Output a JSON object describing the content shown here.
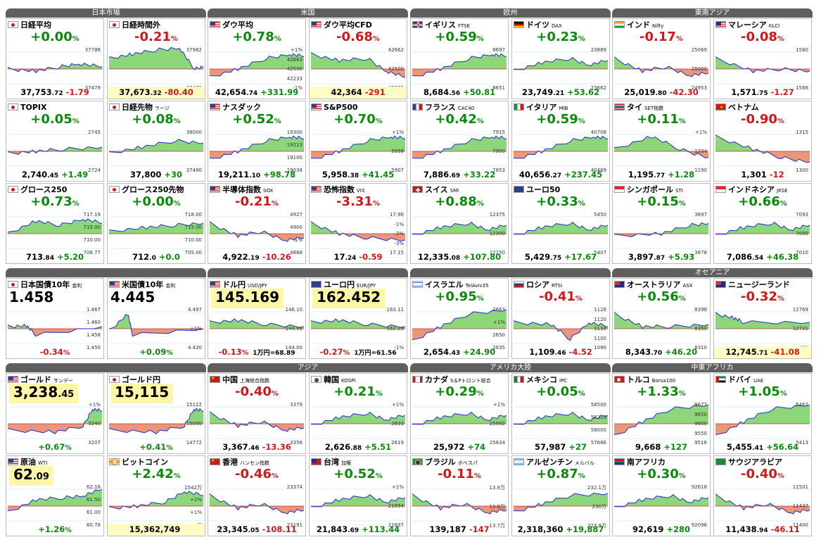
{
  "groups": [
    {
      "title": "日本市場",
      "pos": "g0",
      "cells": [
        {
          "name": "日経平均",
          "sub": "",
          "flag": "jp",
          "pct": "+0.00",
          "dir": "eq",
          "main": "37,753",
          "dec": ".72",
          "chg": "-1.79",
          "chgdir": "dn",
          "labels": [
            "37786",
            "37479"
          ],
          "wm": "Nikkei",
          "shape": "a"
        },
        {
          "name": "日経時間外",
          "sub": "",
          "flag": "jp",
          "pct": "-0.21",
          "dir": "dn",
          "main": "37,673",
          "dec": ".32",
          "chg": "-80.40",
          "chgdir": "dn",
          "labels": [
            "37982",
            "37479"
          ],
          "wm": "DERIVED INFO",
          "shape": "b",
          "hl": true
        },
        {
          "name": "TOPIX",
          "sub": "",
          "flag": "jp",
          "pct": "+0.05",
          "dir": "up",
          "main": "2,740",
          "dec": ".45",
          "chg": "+1.49",
          "chgdir": "up",
          "labels": [
            "2745",
            "2724"
          ],
          "wm": "TOPIX",
          "shape": "c"
        },
        {
          "name": "日経先物",
          "sub": "ラージ",
          "flag": "jp",
          "pct": "+0.08",
          "dir": "up",
          "main": "37,800",
          "dec": "",
          "chg": "+30",
          "chgdir": "up",
          "labels": [
            "38000",
            "37490"
          ],
          "wm": "",
          "shape": "d"
        },
        {
          "name": "グロース250",
          "sub": "",
          "flag": "jp",
          "pct": "+0.73",
          "dir": "up",
          "main": "713",
          "dec": ".84",
          "chg": "+5.20",
          "chgdir": "up",
          "labels": [
            "717.19",
            "715.00",
            "710.00",
            "708.77"
          ],
          "wm": "",
          "shape": "e"
        },
        {
          "name": "グロース250先物",
          "sub": "",
          "flag": "jp",
          "pct": "+0.00",
          "dir": "eq",
          "main": "712",
          "dec": ".0",
          "chg": "+0.0",
          "chgdir": "up",
          "labels": [
            "718.00",
            "715.00",
            "710.00",
            "705.00"
          ],
          "wm": "",
          "shape": "f"
        }
      ]
    },
    {
      "title": "米国",
      "pos": "g1",
      "cells": [
        {
          "name": "ダウ平均",
          "sub": "",
          "flag": "us",
          "pct": "+0.78",
          "dir": "up",
          "main": "42,654",
          "dec": ".74",
          "chg": "+331.99",
          "chgdir": "up",
          "labels": [
            "+1%",
            "42663",
            "42500",
            "42233",
            "-1%"
          ],
          "wm": "",
          "shape": "g"
        },
        {
          "name": "ダウ平均CFD",
          "sub": "",
          "flag": "us",
          "pct": "-0.68",
          "dir": "dn",
          "main": "42,364",
          "dec": "",
          "chg": "-291",
          "chgdir": "dn",
          "labels": [
            "42662",
            "42500",
            "42229"
          ],
          "wm": "",
          "shape": "h",
          "hl": true
        },
        {
          "name": "ナスダック",
          "sub": "",
          "flag": "us",
          "pct": "+0.52",
          "dir": "up",
          "main": "19,211",
          "dec": ".10",
          "chg": "+98.78",
          "chgdir": "up",
          "labels": [
            "19300",
            "19213",
            "19100",
            "19038"
          ],
          "wm": "",
          "shape": "g"
        },
        {
          "name": "S&P500",
          "sub": "",
          "flag": "us",
          "pct": "+0.70",
          "dir": "up",
          "main": "5,958",
          "dec": ".38",
          "chg": "+41.45",
          "chgdir": "up",
          "labels": [
            "+1%",
            "5958",
            "5907"
          ],
          "wm": "",
          "shape": "g"
        },
        {
          "name": "半導体指数",
          "sub": "SOX",
          "flag": "us",
          "pct": "-0.21",
          "dir": "dn",
          "main": "4,922",
          "dec": ".19",
          "chg": "-10.26",
          "chgdir": "dn",
          "labels": [
            "4927",
            "4900",
            "-1%",
            "4868"
          ],
          "wm": "",
          "shape": "i"
        },
        {
          "name": "恐怖指数",
          "sub": "VIX",
          "flag": "us",
          "pct": "-3.31",
          "dir": "dn",
          "main": "17",
          "dec": ".24",
          "chg": "-0.59",
          "chgdir": "dn",
          "labels": [
            "17.96",
            "-1%",
            "-2%",
            "-3%",
            "17.15"
          ],
          "wm": "",
          "shape": "j"
        }
      ]
    },
    {
      "title": "欧州",
      "pos": "g2",
      "cells": [
        {
          "name": "イギリス",
          "sub": "FTSE",
          "flag": "gb",
          "pct": "+0.59",
          "dir": "up",
          "main": "8,684",
          "dec": ".56",
          "chg": "+50.81",
          "chgdir": "up",
          "labels": [
            "8697",
            "8651"
          ],
          "wm": "",
          "shape": "g"
        },
        {
          "name": "ドイツ",
          "sub": "DAX",
          "flag": "de",
          "pct": "+0.23",
          "dir": "up",
          "main": "23,749",
          "dec": ".21",
          "chg": "+53.62",
          "chgdir": "up",
          "labels": [
            "23889",
            "23662"
          ],
          "wm": "",
          "shape": "k"
        },
        {
          "name": "フランス",
          "sub": "CAC40",
          "flag": "fr",
          "pct": "+0.42",
          "dir": "up",
          "main": "7,886",
          "dec": ".69",
          "chg": "+33.22",
          "chgdir": "up",
          "labels": [
            "7915",
            "7900",
            "7853"
          ],
          "wm": "",
          "shape": "g"
        },
        {
          "name": "イタリア",
          "sub": "MIB",
          "flag": "it",
          "pct": "+0.59",
          "dir": "up",
          "main": "40,656",
          "dec": ".27",
          "chg": "+237.45",
          "chgdir": "up",
          "labels": [
            "40708",
            "40469"
          ],
          "wm": "",
          "shape": "g"
        },
        {
          "name": "スイス",
          "sub": "SMI",
          "flag": "ch",
          "pct": "+0.88",
          "dir": "up",
          "main": "12,335",
          "dec": ".08",
          "chg": "+107.80",
          "chgdir": "up",
          "labels": [
            "12375",
            "12300",
            "12250"
          ],
          "wm": "",
          "shape": "k"
        },
        {
          "name": "ユーロ50",
          "sub": "",
          "flag": "eu",
          "pct": "+0.33",
          "dir": "up",
          "main": "5,429",
          "dec": ".75",
          "chg": "+17.67",
          "chgdir": "up",
          "labels": [
            "5450",
            "5407"
          ],
          "wm": "",
          "shape": "k"
        }
      ]
    },
    {
      "title": "東南アジア",
      "pos": "g3",
      "cells": [
        {
          "name": "インド",
          "sub": "Nifty",
          "flag": "in",
          "pct": "-0.17",
          "dir": "dn",
          "main": "25,019",
          "dec": ".80",
          "chg": "-42.30",
          "chgdir": "dn",
          "labels": [
            "25069",
            "25000",
            "24953"
          ],
          "wm": "",
          "shape": "i"
        },
        {
          "name": "マレーシア",
          "sub": "KLCI",
          "flag": "my",
          "pct": "-0.08",
          "dir": "dn",
          "main": "1,571",
          "dec": ".75",
          "chg": "-1.27",
          "chgdir": "dn",
          "labels": [
            "1580",
            "1568"
          ],
          "wm": "",
          "shape": "l"
        },
        {
          "name": "タイ",
          "sub": "SET指数",
          "flag": "th",
          "pct": "+0.11",
          "dir": "up",
          "main": "1,195",
          "dec": ".77",
          "chg": "+1.28",
          "chgdir": "up",
          "labels": [
            "+1%",
            "1204",
            "1190"
          ],
          "wm": "",
          "shape": "m"
        },
        {
          "name": "ベトナム",
          "sub": "",
          "flag": "vn",
          "pct": "-0.90",
          "dir": "dn",
          "main": "1,301",
          "dec": "",
          "chg": "-12",
          "chgdir": "dn",
          "labels": [
            "1315",
            "1300"
          ],
          "wm": "",
          "shape": "n"
        },
        {
          "name": "シンガポール",
          "sub": "STI",
          "flag": "sg",
          "pct": "+0.15",
          "dir": "up",
          "main": "3,897",
          "dec": ".87",
          "chg": "+5.93",
          "chgdir": "up",
          "labels": [
            "3897",
            "3878"
          ],
          "wm": "",
          "shape": "o"
        },
        {
          "name": "インドネシア",
          "sub": "JKSE",
          "flag": "id",
          "pct": "+0.66",
          "dir": "up",
          "main": "7,086",
          "dec": ".54",
          "chg": "+46.38",
          "chgdir": "up",
          "labels": [
            "7093",
            "7050",
            "7010"
          ],
          "wm": "",
          "shape": "k"
        }
      ]
    },
    {
      "title": "",
      "pos": "g4",
      "cells": [
        {
          "name": "日本国債10年",
          "sub": "金利",
          "flag": "jp",
          "big": "1.458",
          "bigdec": "",
          "pct": "-0.34",
          "dir": "dn",
          "labels": [
            "1.467",
            "1.460",
            "1.458",
            "1.450"
          ],
          "shape": "p",
          "pctbottom": true
        },
        {
          "name": "米国債10年",
          "sub": "金利",
          "flag": "us",
          "big": "4.445",
          "bigdec": "",
          "pct": "+0.09",
          "dir": "up",
          "labels": [
            "4.497",
            "+1%",
            "4.430"
          ],
          "shape": "q",
          "pctbottom": true
        }
      ]
    },
    {
      "title": "",
      "pos": "g5",
      "cells": [
        {
          "name": "ドル円",
          "sub": "USD/JPY",
          "flag": "us",
          "big": "145.169",
          "bigdec": "",
          "yel": true,
          "pct": "-0.13",
          "dir": "dn",
          "extra": "1万円=68.89",
          "labels": [
            "146.10",
            "144.91",
            "144.00"
          ],
          "shape": "r",
          "pctbottom": true
        },
        {
          "name": "ユーロ円",
          "sub": "EUR/JPY",
          "flag": "eu",
          "big": "162.452",
          "bigdec": "",
          "yel": true,
          "pct": "-0.27",
          "dir": "dn",
          "extra": "1万円=61.56",
          "labels": [
            "163.11",
            "162.23",
            "-1%"
          ],
          "shape": "r",
          "pctbottom": true
        }
      ]
    },
    {
      "title": "",
      "pos": "g6",
      "cells": [
        {
          "name": "イスラエル",
          "sub": "TelAviv35",
          "flag": "il",
          "pct": "+0.95",
          "dir": "up",
          "main": "2,654",
          "dec": ".43",
          "chg": "+24.90",
          "chgdir": "up",
          "labels": [
            "2663",
            "+1%",
            "2650",
            "2635"
          ],
          "wm": "",
          "shape": "s"
        },
        {
          "name": "ロシア",
          "sub": "RTSI",
          "flag": "ru",
          "pct": "-0.41",
          "dir": "dn",
          "main": "1,109",
          "dec": ".46",
          "chg": "-4.52",
          "chgdir": "dn",
          "labels": [
            "1128",
            "1120",
            "1110",
            "1100",
            "1090"
          ],
          "wm": "",
          "shape": "t"
        }
      ]
    },
    {
      "title": "オセアニア",
      "pos": "g7",
      "cells": [
        {
          "name": "オーストラリア",
          "sub": "ASX",
          "flag": "au",
          "pct": "+0.56",
          "dir": "up",
          "main": "8,343",
          "dec": ".70",
          "chg": "+46.20",
          "chgdir": "up",
          "labels": [
            "8398",
            "8350",
            "8310"
          ],
          "wm": "",
          "shape": "u"
        },
        {
          "name": "ニュージーランド",
          "sub": "",
          "flag": "nz",
          "pct": "-0.32",
          "dir": "dn",
          "main": "12,745",
          "dec": ".71",
          "chg": "-41.08",
          "chgdir": "dn",
          "labels": [
            "12769",
            "12731",
            "-1%"
          ],
          "wm": "",
          "shape": "v",
          "hl": true
        }
      ]
    },
    {
      "title": "",
      "pos": "g8",
      "cells": [
        {
          "name": "ゴールド",
          "sub": "サンデー",
          "flag": "us",
          "big": "3,238",
          "bigdec": ".45",
          "yel": true,
          "pct": "+0.67",
          "dir": "up",
          "labels": [
            "+1%",
            "3240",
            "3207"
          ],
          "shape": "w",
          "pctbottom": true
        },
        {
          "name": "ゴールド円",
          "sub": "",
          "flag": "jp",
          "big": "15,115",
          "bigdec": "",
          "yel": true,
          "pct": "+0.41",
          "dir": "up",
          "labels": [
            "15122",
            "15000",
            "14772"
          ],
          "shape": "w",
          "pctbottom": true
        },
        {
          "name": "原油",
          "sub": "WTI",
          "flag": "us",
          "big": "62",
          "bigdec": ".09",
          "yel": true,
          "pct": "+1.26",
          "dir": "up",
          "labels": [
            "62.16",
            "61.50",
            "61.00",
            "60.78"
          ],
          "shape": "x",
          "pctbottom": true
        },
        {
          "name": "ビットコイン",
          "sub": "",
          "flag": "btc",
          "pct": "+2.42",
          "dir": "up",
          "main": "15,362,749",
          "dec": "",
          "chg": "",
          "chgdir": "up",
          "labels": [
            "1542万",
            "+2%",
            "+1%",
            "1499万"
          ],
          "wm": "",
          "shape": "y",
          "hl": true
        }
      ]
    },
    {
      "title": "アジア",
      "pos": "g9",
      "cells": [
        {
          "name": "中国",
          "sub": "上海総合指数",
          "flag": "cn",
          "pct": "-0.40",
          "dir": "dn",
          "main": "3,367",
          "dec": ".46",
          "chg": "-13.36",
          "chgdir": "dn",
          "labels": [
            "3379",
            "3356"
          ],
          "wm": "",
          "shape": "i"
        },
        {
          "name": "韓国",
          "sub": "KOSPI",
          "flag": "kr",
          "pct": "+0.21",
          "dir": "up",
          "main": "2,626",
          "dec": ".88",
          "chg": "+5.51",
          "chgdir": "up",
          "labels": [
            "+1%",
            "2633",
            "2619"
          ],
          "wm": "",
          "shape": "k"
        },
        {
          "name": "香港",
          "sub": "ハンセン指数",
          "flag": "cn",
          "pct": "-0.46",
          "dir": "dn",
          "main": "23,345",
          "dec": ".05",
          "chg": "-108.11",
          "chgdir": "dn",
          "labels": [
            "23374",
            "23191"
          ],
          "wm": "",
          "shape": "i"
        },
        {
          "name": "台湾",
          "sub": "加権",
          "flag": "tw",
          "pct": "+0.52",
          "dir": "up",
          "main": "21,843",
          "dec": ".69",
          "chg": "+113.44",
          "chgdir": "up",
          "labels": [
            "+1%",
            "21854",
            "21697"
          ],
          "wm": "",
          "shape": "k"
        }
      ]
    },
    {
      "title": "アメリカ大陸",
      "pos": "g10",
      "cells": [
        {
          "name": "カナダ",
          "sub": "S＆Pトロント総合",
          "flag": "ca",
          "pct": "+0.29",
          "dir": "up",
          "main": "25,972",
          "dec": "",
          "chg": "+74",
          "chgdir": "up",
          "labels": [
            "+1%",
            "25992",
            "25834"
          ],
          "wm": "",
          "shape": "k"
        },
        {
          "name": "メキシコ",
          "sub": "IPC",
          "flag": "mx",
          "pct": "+0.05",
          "dir": "up",
          "main": "57,987",
          "dec": "",
          "chg": "+27",
          "chgdir": "up",
          "labels": [
            "58500",
            "58223",
            "58000",
            "57686"
          ],
          "wm": "",
          "shape": "k"
        },
        {
          "name": "ブラジル",
          "sub": "ボベスパ",
          "flag": "br",
          "pct": "-0.11",
          "dir": "dn",
          "main": "139,187",
          "dec": "",
          "chg": "-147",
          "chgdir": "dn",
          "labels": [
            "13.9万",
            "13.8万",
            "13.7万"
          ],
          "wm": "",
          "shape": "i"
        },
        {
          "name": "アルゼンチン",
          "sub": "メルバル",
          "flag": "ar",
          "pct": "+0.87",
          "dir": "up",
          "main": "2,318,360",
          "dec": "",
          "chg": "+19,887",
          "chgdir": "up",
          "labels": [
            "232.1万",
            "230万",
            "227.9万"
          ],
          "wm": "",
          "shape": "z"
        }
      ]
    },
    {
      "title": "中東アフリカ",
      "pos": "g11",
      "cells": [
        {
          "name": "トルコ",
          "sub": "Borsa100",
          "flag": "tr",
          "pct": "+1.33",
          "dir": "up",
          "main": "9,668",
          "dec": "",
          "chg": "+127",
          "chgdir": "up",
          "labels": [
            "9677",
            "9650",
            "9600",
            "9550",
            "9516"
          ],
          "wm": "",
          "shape": "s"
        },
        {
          "name": "ドバイ",
          "sub": "UAE",
          "flag": "ae",
          "pct": "+1.05",
          "dir": "up",
          "main": "5,455",
          "dec": ".41",
          "chg": "+56.64",
          "chgdir": "up",
          "labels": [
            "5462",
            "5413"
          ],
          "wm": "",
          "shape": "s"
        },
        {
          "name": "南アフリカ",
          "sub": "",
          "flag": "za",
          "pct": "+0.30",
          "dir": "up",
          "main": "92,619",
          "dec": "",
          "chg": "+280",
          "chgdir": "up",
          "labels": [
            "92618",
            "92096"
          ],
          "wm": "",
          "shape": "k"
        },
        {
          "name": "サウジアラビア",
          "sub": "",
          "flag": "sa",
          "pct": "-0.40",
          "dir": "dn",
          "main": "11,438",
          "dec": ".94",
          "chg": "-46.11",
          "chgdir": "dn",
          "labels": [
            "11501",
            "11437",
            "11400"
          ],
          "wm": "",
          "shape": "i"
        }
      ]
    }
  ],
  "colors": {
    "up": "#0a8a0a",
    "down": "#d01818",
    "fillUp": "#8ed67a",
    "fillDn": "#e9967a",
    "line": "#1a2fd0",
    "head": "#5f5f5f"
  }
}
